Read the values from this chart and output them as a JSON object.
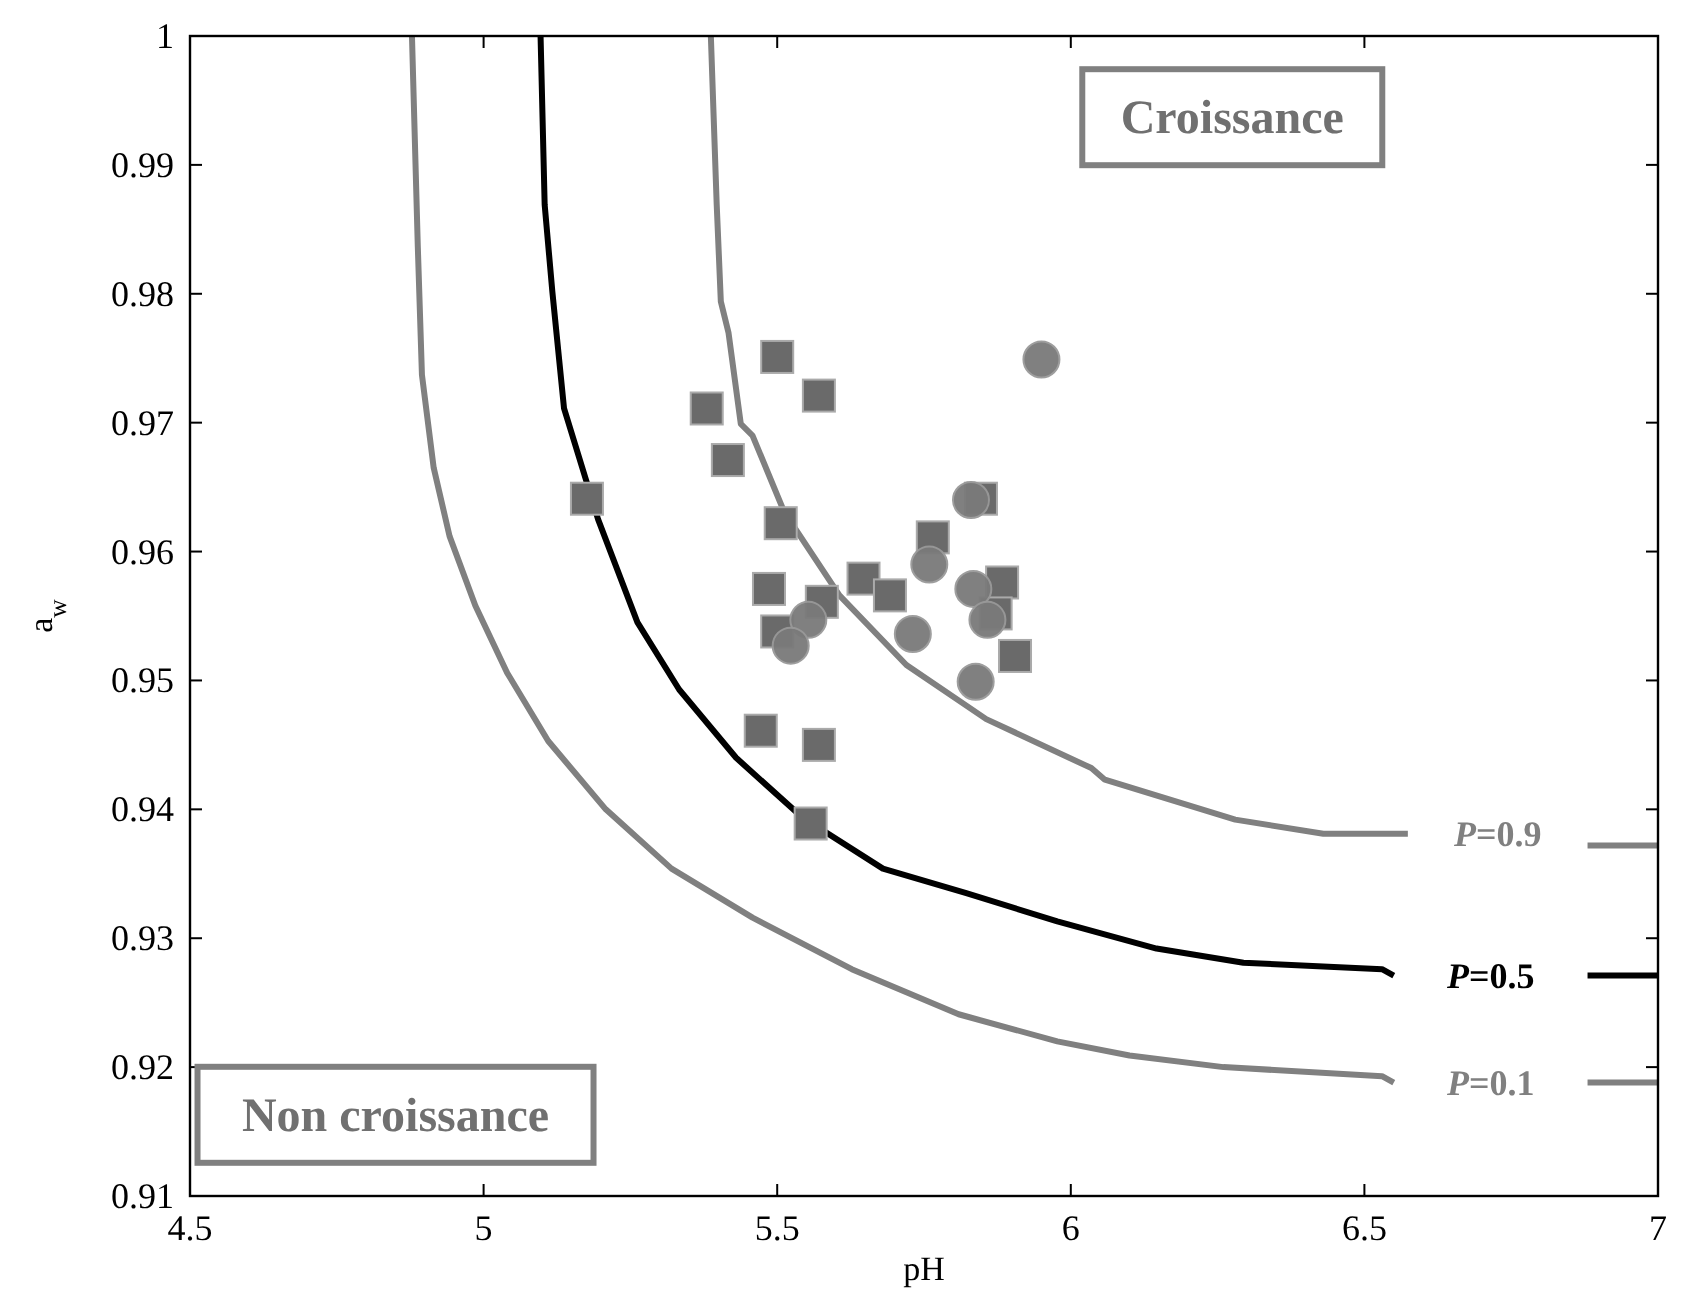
{
  "chart_data": {
    "type": "line",
    "xlabel": "pH",
    "ylabel": "a$_{w}$",
    "xlim": [
      4.5,
      7
    ],
    "ylim": [
      0.91,
      1
    ],
    "xticks": [
      4.5,
      5,
      5.5,
      6,
      6.5,
      7
    ],
    "yticks": [
      0.91,
      0.92,
      0.93,
      0.94,
      0.95,
      0.96,
      0.97,
      0.98,
      0.99,
      {
        "value": 1,
        "label": "1"
      }
    ],
    "grid": false,
    "marker": "none",
    "line_style": "solid",
    "annotations": [
      "Croissance",
      "Non croissance"
    ],
    "series": [
      {
        "name": "P=0.9",
        "color": "#808080",
        "x": [
          5.387,
          5.397,
          5.404,
          5.417,
          5.438,
          5.458,
          5.518,
          5.529,
          5.606,
          5.72,
          5.856,
          6.035,
          6.058,
          6.28,
          6.43,
          6.574,
          6.72,
          6.88,
          7
        ],
        "values": [
          1.0,
          0.9869,
          0.9794,
          0.977,
          0.9699,
          0.969,
          0.9624,
          0.9619,
          0.9566,
          0.9512,
          0.947,
          0.9432,
          0.9423,
          0.9392,
          0.9381,
          0.9381,
          null,
          0.9372,
          0.9372
        ]
      },
      {
        "name": "P=0.5",
        "color": "#000000",
        "x": [
          5.097,
          5.104,
          5.117,
          5.137,
          5.195,
          5.262,
          5.333,
          5.43,
          5.542,
          5.68,
          5.822,
          5.977,
          6.146,
          6.294,
          6.53,
          6.55,
          6.72,
          6.88,
          7
        ],
        "values": [
          1.0,
          0.9869,
          0.9802,
          0.9711,
          0.9625,
          0.9545,
          0.9493,
          0.944,
          0.9394,
          0.9354,
          0.9335,
          0.9313,
          0.9292,
          0.9281,
          0.9276,
          0.9271,
          null,
          0.9271,
          0.9271
        ]
      },
      {
        "name": "P=0.1",
        "color": "#808080",
        "x": [
          4.878,
          4.888,
          4.895,
          4.915,
          4.942,
          4.986,
          5.04,
          5.11,
          5.208,
          5.32,
          5.458,
          5.627,
          5.809,
          5.977,
          6.1,
          6.26,
          6.53,
          6.55,
          6.72,
          6.88,
          7
        ],
        "values": [
          1.0,
          0.9836,
          0.9737,
          0.9665,
          0.9612,
          0.9558,
          0.9506,
          0.9453,
          0.94,
          0.9354,
          0.9316,
          0.9276,
          0.9241,
          0.922,
          0.9209,
          0.92,
          0.9193,
          0.9188,
          null,
          0.9188,
          0.9188
        ]
      },
      {
        "type": "scatter",
        "marker": "square",
        "color": "#6a6a6a",
        "x": [
          5.5,
          5.38,
          5.571,
          5.416,
          5.176,
          5.506,
          5.486,
          5.5,
          5.576,
          5.647,
          5.692,
          5.765,
          5.847,
          5.883,
          5.872,
          5.905,
          5.472,
          5.571,
          5.557
        ],
        "values": [
          0.9751,
          0.9711,
          0.9721,
          0.9671,
          0.9641,
          0.9622,
          0.9571,
          0.9538,
          0.9561,
          0.9579,
          0.9566,
          0.9611,
          0.9641,
          0.9576,
          0.9552,
          0.9519,
          0.9461,
          0.945,
          0.9389
        ]
      },
      {
        "type": "scatter",
        "marker": "circle",
        "color": "#7a7a7a",
        "x": [
          5.95,
          5.83,
          5.759,
          5.834,
          5.858,
          5.731,
          5.838,
          5.553,
          5.523
        ],
        "values": [
          0.9749,
          0.964,
          0.959,
          0.9571,
          0.9547,
          0.9536,
          0.9499,
          0.9547,
          0.9527
        ]
      }
    ]
  }
}
